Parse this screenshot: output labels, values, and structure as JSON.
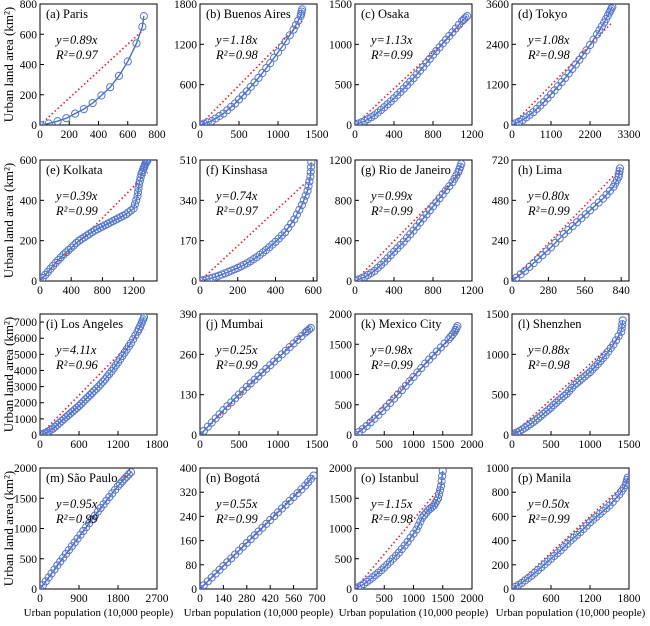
{
  "figure": {
    "ylabel": "Urban land area (km²)",
    "xlabel": "Urban population (10,000 people)"
  },
  "chart_data": [
    {
      "type": "scatter",
      "title": "(a) Paris",
      "slope": "0.89",
      "r2": "0.97",
      "xlim": [
        0,
        800
      ],
      "ylim": [
        0,
        800
      ],
      "xticks": [
        0,
        200,
        400,
        600,
        800
      ],
      "xtick_labels": [
        "0",
        "200",
        "400",
        "600",
        "800"
      ],
      "yticks": [
        0,
        200,
        400,
        600,
        800
      ],
      "ytick_labels": [
        "0",
        "200",
        "400",
        "600",
        "800"
      ],
      "x": [
        0,
        60,
        120,
        180,
        240,
        300,
        360,
        420,
        480,
        540,
        600,
        660,
        700,
        710
      ],
      "y": [
        0,
        10,
        25,
        45,
        75,
        105,
        145,
        195,
        250,
        325,
        420,
        540,
        650,
        720
      ]
    },
    {
      "type": "scatter",
      "title": "(b) Buenos Aires",
      "slope": "1.18",
      "r2": "0.98",
      "xlim": [
        0,
        1500
      ],
      "ylim": [
        0,
        1800
      ],
      "xticks": [
        0,
        500,
        1000,
        1500
      ],
      "xtick_labels": [
        "0",
        "500",
        "1000",
        "1500"
      ],
      "yticks": [
        0,
        600,
        1200,
        1800
      ],
      "ytick_labels": [
        "0",
        "600",
        "1200",
        "1800"
      ],
      "x": [
        0,
        150,
        300,
        450,
        600,
        750,
        900,
        1050,
        1200,
        1290,
        1310
      ],
      "y": [
        0,
        60,
        170,
        320,
        500,
        700,
        920,
        1160,
        1420,
        1620,
        1720
      ]
    },
    {
      "type": "scatter",
      "title": "(c) Osaka",
      "slope": "1.13",
      "r2": "0.99",
      "xlim": [
        0,
        1200
      ],
      "ylim": [
        0,
        1500
      ],
      "xticks": [
        0,
        400,
        800,
        1200
      ],
      "xtick_labels": [
        "0",
        "400",
        "800",
        "1200"
      ],
      "yticks": [
        0,
        500,
        1000,
        1500
      ],
      "ytick_labels": [
        "0",
        "500",
        "1000",
        "1500"
      ],
      "x": [
        0,
        100,
        200,
        300,
        400,
        500,
        600,
        700,
        800,
        900,
        1000,
        1100,
        1150
      ],
      "y": [
        0,
        50,
        120,
        220,
        330,
        450,
        580,
        720,
        870,
        1010,
        1150,
        1290,
        1350
      ]
    },
    {
      "type": "scatter",
      "title": "(d) Tokyo",
      "slope": "1.08",
      "r2": "0.98",
      "xlim": [
        0,
        3300
      ],
      "ylim": [
        0,
        3600
      ],
      "xticks": [
        0,
        1100,
        2200,
        3300
      ],
      "xtick_labels": [
        "0",
        "1100",
        "2200",
        "3300"
      ],
      "yticks": [
        0,
        1200,
        2400,
        3600
      ],
      "ytick_labels": [
        "0",
        "1200",
        "2400",
        "3600"
      ],
      "x": [
        0,
        300,
        600,
        900,
        1200,
        1500,
        1800,
        2100,
        2400,
        2600,
        2750,
        2830
      ],
      "y": [
        0,
        150,
        380,
        680,
        1030,
        1400,
        1800,
        2220,
        2700,
        3050,
        3350,
        3520
      ]
    },
    {
      "type": "scatter",
      "title": "(e) Kolkata",
      "slope": "0.39",
      "r2": "0.99",
      "xlim": [
        0,
        1500
      ],
      "ylim": [
        0,
        600
      ],
      "xticks": [
        0,
        400,
        800,
        1200
      ],
      "xtick_labels": [
        "0",
        "400",
        "800",
        "1200"
      ],
      "yticks": [
        0,
        200,
        400,
        600
      ],
      "ytick_labels": [
        "0",
        "200",
        "400",
        "600"
      ],
      "x": [
        0,
        100,
        200,
        300,
        400,
        500,
        600,
        700,
        800,
        900,
        1000,
        1100,
        1200,
        1250,
        1270,
        1300,
        1330,
        1350,
        1380
      ],
      "y": [
        0,
        45,
        90,
        130,
        165,
        200,
        225,
        250,
        270,
        290,
        310,
        330,
        360,
        420,
        480,
        530,
        560,
        580,
        600
      ]
    },
    {
      "type": "scatter",
      "title": "(f) Kinshasa",
      "slope": "0.74",
      "r2": "0.97",
      "xlim": [
        0,
        620
      ],
      "ylim": [
        0,
        510
      ],
      "xticks": [
        0,
        200,
        400,
        600
      ],
      "xtick_labels": [
        "0",
        "200",
        "400",
        "600"
      ],
      "yticks": [
        0,
        170,
        340,
        510
      ],
      "ytick_labels": [
        "0",
        "170",
        "340",
        "510"
      ],
      "x": [
        0,
        50,
        100,
        150,
        200,
        250,
        300,
        350,
        400,
        450,
        500,
        540,
        570,
        585,
        590
      ],
      "y": [
        0,
        10,
        22,
        38,
        55,
        75,
        100,
        130,
        165,
        205,
        260,
        320,
        380,
        440,
        500
      ]
    },
    {
      "type": "scatter",
      "title": "(g) Rio de Janeiro",
      "slope": "0.99",
      "r2": "0.99",
      "xlim": [
        0,
        1200
      ],
      "ylim": [
        0,
        1200
      ],
      "xticks": [
        0,
        400,
        800,
        1200
      ],
      "xtick_labels": [
        "0",
        "400",
        "800",
        "1200"
      ],
      "yticks": [
        0,
        400,
        800,
        1200
      ],
      "ytick_labels": [
        "0",
        "400",
        "800",
        "1200"
      ],
      "x": [
        0,
        100,
        200,
        300,
        400,
        500,
        600,
        700,
        800,
        900,
        1000,
        1060,
        1090
      ],
      "y": [
        0,
        40,
        100,
        190,
        290,
        390,
        500,
        620,
        740,
        860,
        980,
        1080,
        1160
      ]
    },
    {
      "type": "scatter",
      "title": "(h) Lima",
      "slope": "0.80",
      "r2": "0.99",
      "xlim": [
        0,
        900
      ],
      "ylim": [
        0,
        720
      ],
      "xticks": [
        0,
        280,
        560,
        840
      ],
      "xtick_labels": [
        "0",
        "280",
        "560",
        "840"
      ],
      "yticks": [
        0,
        240,
        480,
        720
      ],
      "ytick_labels": [
        "0",
        "240",
        "480",
        "720"
      ],
      "x": [
        0,
        100,
        200,
        300,
        400,
        500,
        600,
        700,
        780,
        820,
        830
      ],
      "y": [
        0,
        60,
        130,
        200,
        280,
        350,
        420,
        490,
        560,
        620,
        670
      ]
    },
    {
      "type": "scatter",
      "title": "(i) Los Angeles",
      "slope": "4.11",
      "r2": "0.96",
      "xlim": [
        0,
        1800
      ],
      "ylim": [
        0,
        7500
      ],
      "xticks": [
        0,
        600,
        1200,
        1800
      ],
      "xtick_labels": [
        "0",
        "600",
        "1200",
        "1800"
      ],
      "yticks": [
        0,
        1000,
        2000,
        3000,
        4000,
        5000,
        6000,
        7000
      ],
      "ytick_labels": [
        "0",
        "1000",
        "2000",
        "3000",
        "4000",
        "5000",
        "6000",
        "7000"
      ],
      "x": [
        0,
        100,
        200,
        300,
        400,
        500,
        600,
        700,
        800,
        900,
        1000,
        1100,
        1200,
        1300,
        1400,
        1500,
        1560,
        1600
      ],
      "y": [
        0,
        150,
        400,
        750,
        1100,
        1450,
        1800,
        2200,
        2600,
        3000,
        3450,
        3950,
        4500,
        5100,
        5700,
        6400,
        6900,
        7300
      ]
    },
    {
      "type": "scatter",
      "title": "(j) Mumbai",
      "slope": "0.25",
      "r2": "0.99",
      "xlim": [
        0,
        1500
      ],
      "ylim": [
        0,
        390
      ],
      "xticks": [
        0,
        500,
        1000,
        1500
      ],
      "xtick_labels": [
        "0",
        "500",
        "1000",
        "1500"
      ],
      "yticks": [
        0,
        130,
        260,
        390
      ],
      "ytick_labels": [
        "0",
        "130",
        "260",
        "390"
      ],
      "x": [
        0,
        150,
        300,
        450,
        600,
        750,
        900,
        1050,
        1200,
        1350,
        1420
      ],
      "y": [
        0,
        40,
        80,
        118,
        155,
        190,
        225,
        260,
        295,
        330,
        345
      ]
    },
    {
      "type": "scatter",
      "title": "(k) Mexico City",
      "slope": "0.98",
      "r2": "0.99",
      "xlim": [
        0,
        2000
      ],
      "ylim": [
        0,
        2000
      ],
      "xticks": [
        0,
        500,
        1000,
        1500,
        2000
      ],
      "xtick_labels": [
        "0",
        "500",
        "1000",
        "1500",
        "2000"
      ],
      "yticks": [
        0,
        500,
        1000,
        1500,
        2000
      ],
      "ytick_labels": [
        "0",
        "500",
        "1000",
        "1500",
        "2000"
      ],
      "x": [
        0,
        200,
        400,
        600,
        800,
        1000,
        1200,
        1400,
        1600,
        1700,
        1750
      ],
      "y": [
        0,
        150,
        330,
        530,
        740,
        960,
        1180,
        1380,
        1580,
        1700,
        1800
      ]
    },
    {
      "type": "scatter",
      "title": "(l) Shenzhen",
      "slope": "0.88",
      "r2": "0.98",
      "xlim": [
        0,
        1500
      ],
      "ylim": [
        0,
        1500
      ],
      "xticks": [
        0,
        500,
        1000,
        1500
      ],
      "xtick_labels": [
        "0",
        "500",
        "1000",
        "1500"
      ],
      "yticks": [
        0,
        500,
        1000,
        1500
      ],
      "ytick_labels": [
        "0",
        "500",
        "1000",
        "1500"
      ],
      "x": [
        0,
        100,
        200,
        300,
        400,
        500,
        600,
        700,
        800,
        900,
        1000,
        1100,
        1200,
        1300,
        1400,
        1420
      ],
      "y": [
        0,
        50,
        110,
        180,
        260,
        340,
        430,
        510,
        620,
        700,
        780,
        880,
        990,
        1120,
        1280,
        1420
      ]
    },
    {
      "type": "scatter",
      "title": "(m) São Paulo",
      "slope": "0.95",
      "r2": "0.99",
      "xlim": [
        0,
        2700
      ],
      "ylim": [
        0,
        2000
      ],
      "xticks": [
        0,
        900,
        1800,
        2700
      ],
      "xtick_labels": [
        "0",
        "900",
        "1800",
        "2700"
      ],
      "yticks": [
        0,
        500,
        1000,
        1500,
        2000
      ],
      "ytick_labels": [
        "0",
        "500",
        "1000",
        "1500",
        "2000"
      ],
      "x": [
        0,
        200,
        400,
        600,
        800,
        1000,
        1200,
        1400,
        1600,
        1800,
        1950,
        2100
      ],
      "y": [
        0,
        190,
        390,
        580,
        770,
        960,
        1150,
        1340,
        1520,
        1700,
        1820,
        1930
      ]
    },
    {
      "type": "scatter",
      "title": "(n) Bogotá",
      "slope": "0.55",
      "r2": "0.99",
      "xlim": [
        0,
        700
      ],
      "ylim": [
        0,
        400
      ],
      "xticks": [
        0,
        140,
        280,
        420,
        560,
        700
      ],
      "xtick_labels": [
        "0",
        "140",
        "280",
        "420",
        "560",
        "700"
      ],
      "yticks": [
        0,
        80,
        160,
        240,
        320,
        400
      ],
      "ytick_labels": [
        "0",
        "80",
        "160",
        "240",
        "320",
        "400"
      ],
      "x": [
        0,
        70,
        140,
        210,
        280,
        350,
        420,
        490,
        560,
        630,
        680
      ],
      "y": [
        0,
        38,
        76,
        114,
        152,
        190,
        228,
        266,
        304,
        342,
        375
      ]
    },
    {
      "type": "scatter",
      "title": "(o) Istanbul",
      "slope": "1.15",
      "r2": "0.98",
      "xlim": [
        0,
        2000
      ],
      "ylim": [
        0,
        2000
      ],
      "xticks": [
        0,
        500,
        1000,
        1500,
        2000
      ],
      "xtick_labels": [
        "0",
        "500",
        "1000",
        "1500",
        "2000"
      ],
      "yticks": [
        0,
        500,
        1000,
        1500,
        2000
      ],
      "ytick_labels": [
        "0",
        "500",
        "1000",
        "1500",
        "2000"
      ],
      "x": [
        0,
        150,
        300,
        450,
        600,
        750,
        900,
        1050,
        1150,
        1250,
        1350,
        1420,
        1470,
        1500
      ],
      "y": [
        0,
        80,
        190,
        310,
        450,
        600,
        780,
        980,
        1180,
        1300,
        1380,
        1500,
        1700,
        1950
      ]
    },
    {
      "type": "scatter",
      "title": "(p) Manila",
      "slope": "0.50",
      "r2": "0.99",
      "xlim": [
        0,
        1800
      ],
      "ylim": [
        0,
        1000
      ],
      "xticks": [
        0,
        600,
        1200,
        1800
      ],
      "xtick_labels": [
        "0",
        "600",
        "1200",
        "1800"
      ],
      "yticks": [
        0,
        200,
        400,
        600,
        800,
        1000
      ],
      "ytick_labels": [
        "0",
        "200",
        "400",
        "600",
        "800",
        "1000"
      ],
      "x": [
        0,
        150,
        300,
        450,
        600,
        750,
        900,
        1050,
        1200,
        1350,
        1500,
        1650,
        1750,
        1780
      ],
      "y": [
        0,
        50,
        110,
        180,
        250,
        320,
        400,
        470,
        550,
        620,
        690,
        780,
        860,
        920
      ]
    }
  ]
}
